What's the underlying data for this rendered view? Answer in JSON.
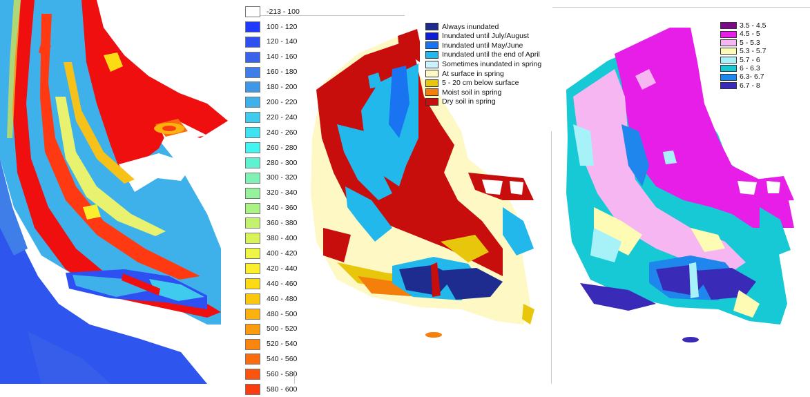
{
  "panels": [
    {
      "id": "elevation",
      "legend": [
        {
          "label": "-213 - 100",
          "color": "#ffffff"
        },
        {
          "label": "100 - 120",
          "color": "#1f3bff"
        },
        {
          "label": "120 - 140",
          "color": "#2e4ff2"
        },
        {
          "label": "140 - 160",
          "color": "#3a63ea"
        },
        {
          "label": "160 - 180",
          "color": "#3f7de8"
        },
        {
          "label": "180 - 200",
          "color": "#3f97e8"
        },
        {
          "label": "200 - 220",
          "color": "#3fb1ea"
        },
        {
          "label": "220 - 240",
          "color": "#3fcbee"
        },
        {
          "label": "240 - 260",
          "color": "#3fe4f2"
        },
        {
          "label": "260 - 280",
          "color": "#43f5f0"
        },
        {
          "label": "280 - 300",
          "color": "#5ff2d0"
        },
        {
          "label": "300 - 320",
          "color": "#7ef2b3"
        },
        {
          "label": "320 - 340",
          "color": "#96f29b"
        },
        {
          "label": "340 - 360",
          "color": "#abf285"
        },
        {
          "label": "360 - 380",
          "color": "#c2f26e"
        },
        {
          "label": "380 - 400",
          "color": "#d8f25a"
        },
        {
          "label": "400 - 420",
          "color": "#eef546"
        },
        {
          "label": "420 - 440",
          "color": "#fbee2c"
        },
        {
          "label": "440 - 460",
          "color": "#fbdc14"
        },
        {
          "label": "460 - 480",
          "color": "#fbc70e"
        },
        {
          "label": "480 - 500",
          "color": "#fbb20e"
        },
        {
          "label": "500 - 520",
          "color": "#fb9c0e"
        },
        {
          "label": "520 - 540",
          "color": "#fb850e"
        },
        {
          "label": "540 - 560",
          "color": "#fb6c0e"
        },
        {
          "label": "560 - 580",
          "color": "#fb540e"
        },
        {
          "label": "580 - 600",
          "color": "#fb3c0e"
        }
      ]
    },
    {
      "id": "hydrology",
      "legend": [
        {
          "label": "Always inundated",
          "color": "#1d2c8e"
        },
        {
          "label": "Inundated until July/August",
          "color": "#0d1ed9"
        },
        {
          "label": "Inundated until May/June",
          "color": "#1a73f0"
        },
        {
          "label": "Inundated until the end of April",
          "color": "#22b8ec"
        },
        {
          "label": "Sometimes inundated in spring",
          "color": "#c9f4fb"
        },
        {
          "label": "At surface in spring",
          "color": "#fdf8c4"
        },
        {
          "label": "5 - 20 cm below surface",
          "color": "#e8c60c"
        },
        {
          "label": "Moist soil in spring",
          "color": "#f57f0b"
        },
        {
          "label": "Dry soil in spring",
          "color": "#c80d0d"
        }
      ]
    },
    {
      "id": "ph",
      "legend": [
        {
          "label": "3.5 - 4.5",
          "color": "#7a0a86"
        },
        {
          "label": "4.5 - 5",
          "color": "#e61ee8"
        },
        {
          "label": "5 - 5.3",
          "color": "#f6b6f2"
        },
        {
          "label": "5.3 - 5.7",
          "color": "#fdfbb4"
        },
        {
          "label": "5.7 - 6",
          "color": "#a6f2f8"
        },
        {
          "label": "6 - 6.3",
          "color": "#16c9d4"
        },
        {
          "label": "6.3- 6.7",
          "color": "#1e86ec"
        },
        {
          "label": "6.7 - 8",
          "color": "#3a2ab8"
        }
      ]
    }
  ]
}
